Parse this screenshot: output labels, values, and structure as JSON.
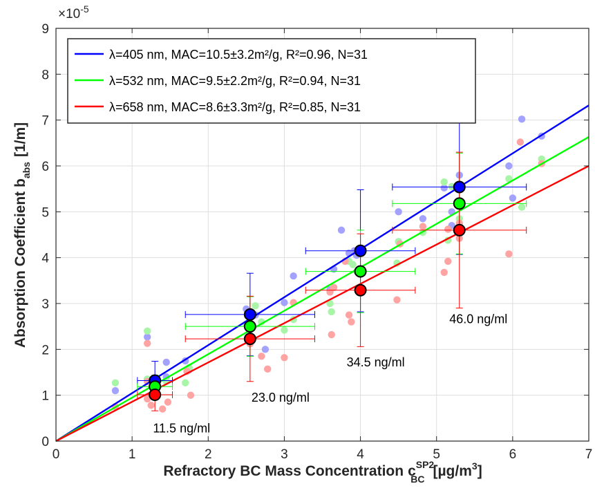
{
  "chart_data": {
    "type": "scatter",
    "xlabel": "Refractory BC Mass Concentration",
    "xlabel_symbol": "c",
    "xlabel_sup": "SP2",
    "xlabel_sub": "BC",
    "xlabel_unit_pre": "[µg/m",
    "xlabel_unit_sup": "3",
    "xlabel_unit_post": "]",
    "ylabel": "Absorption Coefficient b",
    "ylabel_sub": "abs",
    "ylabel_unit": "[1/m]",
    "y_exponent_label": "×10",
    "y_exponent_power": "-5",
    "xlim": [
      0,
      7
    ],
    "ylim": [
      0,
      9
    ],
    "xticks": [
      "0",
      "1",
      "2",
      "3",
      "4",
      "5",
      "6",
      "7"
    ],
    "yticks": [
      "0",
      "1",
      "2",
      "3",
      "4",
      "5",
      "6",
      "7",
      "8",
      "9"
    ],
    "grid": true,
    "legend_position": "top-left",
    "series": [
      {
        "name": "λ=405 nm, MAC=10.5±3.2m²/g, R²=0.96, N=31",
        "color": "#0000ff",
        "light_color": "#a3a3ff",
        "fit_line": {
          "x": [
            0,
            7
          ],
          "y": [
            0,
            7.32
          ]
        },
        "points": [
          [
            0.78,
            1.1
          ],
          [
            1.2,
            2.27
          ],
          [
            1.2,
            1.35
          ],
          [
            1.3,
            1.25
          ],
          [
            1.45,
            1.72
          ],
          [
            1.45,
            1.4
          ],
          [
            1.7,
            1.75
          ],
          [
            1.75,
            1.55
          ],
          [
            2.5,
            2.88
          ],
          [
            2.62,
            2.75
          ],
          [
            2.75,
            2.0
          ],
          [
            3.0,
            3.02
          ],
          [
            3.12,
            3.6
          ],
          [
            3.6,
            3.3
          ],
          [
            3.75,
            4.6
          ],
          [
            3.85,
            4.1
          ],
          [
            3.92,
            4.15
          ],
          [
            3.95,
            4.05
          ],
          [
            4.5,
            5.0
          ],
          [
            4.5,
            4.35
          ],
          [
            4.82,
            4.85
          ],
          [
            5.1,
            5.52
          ],
          [
            5.2,
            5.0
          ],
          [
            5.2,
            4.7
          ],
          [
            5.3,
            5.8
          ],
          [
            5.3,
            5.55
          ],
          [
            5.95,
            6.0
          ],
          [
            6.0,
            5.3
          ],
          [
            6.12,
            7.02
          ],
          [
            6.38,
            6.65
          ],
          [
            3.65,
            3.75
          ]
        ],
        "means": [
          {
            "x": 1.3,
            "y": 1.32,
            "xerr": 0.23,
            "yerr": 0.42
          },
          {
            "x": 2.55,
            "y": 2.76,
            "xerr": 0.85,
            "yerr": 0.9
          },
          {
            "x": 4.0,
            "y": 4.15,
            "xerr": 0.72,
            "yerr": 1.33
          },
          {
            "x": 5.3,
            "y": 5.54,
            "xerr": 0.88,
            "yerr": 1.47
          }
        ]
      },
      {
        "name": "λ=532 nm, MAC=9.5±2.2m²/g, R²=0.94, N=31",
        "color": "#00ff00",
        "light_color": "#a8f5a8",
        "fit_line": {
          "x": [
            0,
            7
          ],
          "y": [
            0,
            6.63
          ]
        },
        "points": [
          [
            0.78,
            1.27
          ],
          [
            1.2,
            2.4
          ],
          [
            1.2,
            1.35
          ],
          [
            1.3,
            1.2
          ],
          [
            1.45,
            1.3
          ],
          [
            1.7,
            1.27
          ],
          [
            1.75,
            1.6
          ],
          [
            2.5,
            2.55
          ],
          [
            2.62,
            2.95
          ],
          [
            2.7,
            2.6
          ],
          [
            3.0,
            2.42
          ],
          [
            3.12,
            2.65
          ],
          [
            3.6,
            3.0
          ],
          [
            3.62,
            2.82
          ],
          [
            3.85,
            3.92
          ],
          [
            3.9,
            3.85
          ],
          [
            3.95,
            3.7
          ],
          [
            4.48,
            3.88
          ],
          [
            4.82,
            4.55
          ],
          [
            5.1,
            5.65
          ],
          [
            5.15,
            4.38
          ],
          [
            5.2,
            5.55
          ],
          [
            5.3,
            5.2
          ],
          [
            5.3,
            4.85
          ],
          [
            5.95,
            5.72
          ],
          [
            6.12,
            5.1
          ],
          [
            6.38,
            6.15
          ],
          [
            4.5,
            4.35
          ],
          [
            3.65,
            3.35
          ],
          [
            1.3,
            0.95
          ],
          [
            2.55,
            2.3
          ]
        ],
        "means": [
          {
            "x": 1.3,
            "y": 1.19,
            "xerr": 0.23,
            "yerr": 0.25
          },
          {
            "x": 2.55,
            "y": 2.5,
            "xerr": 0.85,
            "yerr": 0.65
          },
          {
            "x": 4.0,
            "y": 3.7,
            "xerr": 0.72,
            "yerr": 0.9
          },
          {
            "x": 5.3,
            "y": 5.18,
            "xerr": 0.88,
            "yerr": 1.1
          }
        ]
      },
      {
        "name": "λ=658 nm, MAC=8.6±3.3m²/g, R²=0.85, N=31",
        "color": "#ff0000",
        "light_color": "#ffa3a3",
        "fit_line": {
          "x": [
            0,
            7
          ],
          "y": [
            0,
            6.0
          ]
        },
        "points": [
          [
            0.78,
            0.75
          ],
          [
            1.2,
            2.13
          ],
          [
            1.2,
            1.3
          ],
          [
            1.2,
            0.92
          ],
          [
            1.25,
            0.78
          ],
          [
            1.4,
            0.7
          ],
          [
            1.47,
            0.85
          ],
          [
            1.72,
            1.52
          ],
          [
            1.77,
            1.0
          ],
          [
            2.55,
            2.12
          ],
          [
            2.7,
            1.85
          ],
          [
            2.78,
            1.57
          ],
          [
            3.0,
            1.82
          ],
          [
            3.12,
            3.02
          ],
          [
            3.6,
            3.25
          ],
          [
            3.62,
            2.32
          ],
          [
            3.8,
            3.92
          ],
          [
            3.85,
            2.75
          ],
          [
            3.88,
            2.6
          ],
          [
            4.48,
            3.08
          ],
          [
            4.82,
            4.68
          ],
          [
            5.15,
            4.62
          ],
          [
            5.15,
            3.92
          ],
          [
            5.1,
            3.68
          ],
          [
            5.3,
            4.42
          ],
          [
            5.95,
            4.08
          ],
          [
            6.1,
            6.52
          ],
          [
            6.38,
            6.05
          ],
          [
            4.52,
            4.3
          ],
          [
            3.65,
            3.35
          ],
          [
            5.3,
            4.75
          ]
        ],
        "means": [
          {
            "x": 1.3,
            "y": 1.01,
            "xerr": 0.23,
            "yerr": 0.35
          },
          {
            "x": 2.55,
            "y": 2.23,
            "xerr": 0.85,
            "yerr": 0.93
          },
          {
            "x": 4.0,
            "y": 3.29,
            "xerr": 0.72,
            "yerr": 1.23
          },
          {
            "x": 5.3,
            "y": 4.6,
            "xerr": 0.88,
            "yerr": 1.7
          }
        ]
      }
    ],
    "annotations": [
      {
        "text": "11.5 ng/ml",
        "x": 1.65,
        "y": 0.28
      },
      {
        "text": "23.0 ng/ml",
        "x": 2.95,
        "y": 0.95
      },
      {
        "text": "34.5 ng/ml",
        "x": 4.2,
        "y": 1.72
      },
      {
        "text": "46.0 ng/ml",
        "x": 5.55,
        "y": 2.66
      }
    ]
  }
}
